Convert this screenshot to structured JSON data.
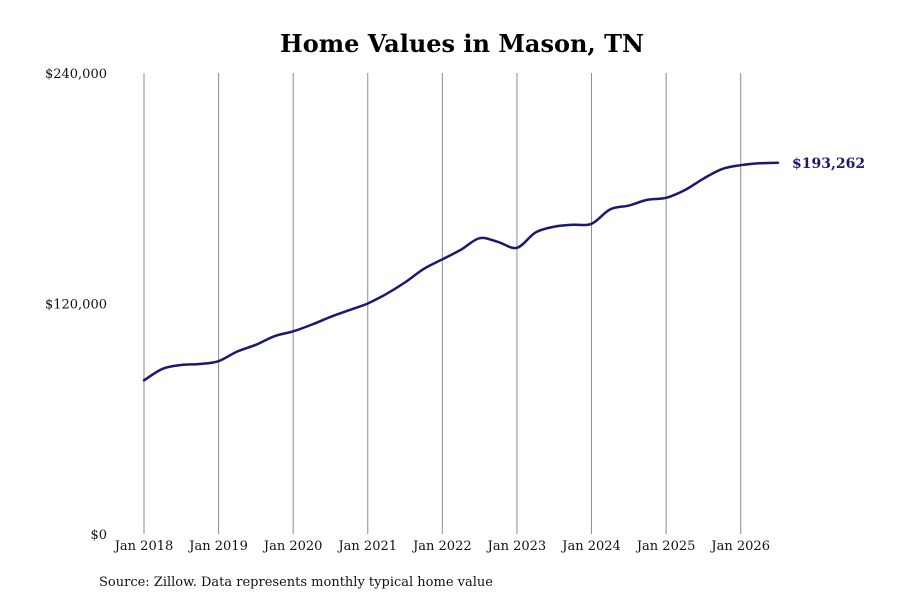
{
  "chart_data": {
    "type": "line",
    "title": "Home Values in Mason, TN",
    "source": "Source: Zillow. Data represents monthly typical home value",
    "xlabel": "",
    "ylabel": "",
    "ylim": [
      0,
      240000
    ],
    "y_ticks": [
      0,
      120000,
      240000
    ],
    "y_tick_labels": [
      "$0",
      "$120,000",
      "$240,000"
    ],
    "x_ticks": [
      "2018-01",
      "2019-01",
      "2020-01",
      "2021-01",
      "2022-01",
      "2023-01",
      "2024-01",
      "2025-01",
      "2026-01"
    ],
    "x_tick_labels": [
      "Jan 2018",
      "Jan 2019",
      "Jan 2020",
      "Jan 2021",
      "Jan 2022",
      "Jan 2023",
      "Jan 2024",
      "Jan 2025",
      "Jan 2026"
    ],
    "xlim": [
      "2018-01",
      "2026-07"
    ],
    "grid": "vertical",
    "line_color": "#191970",
    "end_label": "$193,262",
    "series": [
      {
        "x": [
          "2018-01",
          "2018-04",
          "2018-07",
          "2018-10",
          "2019-01",
          "2019-04",
          "2019-07",
          "2019-10",
          "2020-01",
          "2020-04",
          "2020-07",
          "2020-10",
          "2021-01",
          "2021-04",
          "2021-07",
          "2021-10",
          "2022-01",
          "2022-04",
          "2022-07",
          "2022-10",
          "2023-01",
          "2023-04",
          "2023-07",
          "2023-10",
          "2024-01",
          "2024-04",
          "2024-07",
          "2024-10",
          "2025-01",
          "2025-04",
          "2025-07",
          "2025-10",
          "2026-01",
          "2026-04",
          "2026-07"
        ],
        "values": [
          80000,
          86000,
          88000,
          88500,
          90000,
          95000,
          98500,
          103000,
          105500,
          109000,
          113000,
          116500,
          120000,
          125000,
          131000,
          138000,
          143000,
          148000,
          154000,
          152000,
          149000,
          157000,
          160000,
          161000,
          161500,
          169000,
          171000,
          174000,
          175000,
          179000,
          185000,
          190000,
          192000,
          193000,
          193262
        ]
      }
    ]
  }
}
